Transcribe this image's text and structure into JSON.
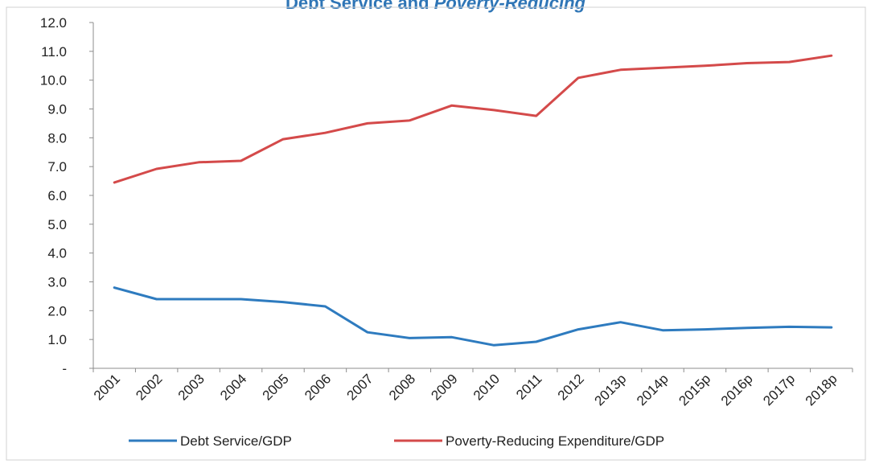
{
  "chart_data": {
    "type": "line",
    "title_part1": "Debt Service and",
    "title_part2": "Poverty-Reducing",
    "x": [
      "2001",
      "2002",
      "2003",
      "2004",
      "2005",
      "2006",
      "2007",
      "2008",
      "2009",
      "2010",
      "2011",
      "2012",
      "2013p",
      "2014p",
      "2015p",
      "2016p",
      "2017p",
      "2018p"
    ],
    "series": [
      {
        "name": "Debt Service/GDP",
        "color": "#2e7bbf",
        "values": [
          2.8,
          2.4,
          2.4,
          2.4,
          2.3,
          2.15,
          1.25,
          1.05,
          1.08,
          0.8,
          0.92,
          1.35,
          1.6,
          1.32,
          1.35,
          1.4,
          1.44,
          1.42
        ]
      },
      {
        "name": "Poverty-Reducing Expenditure/GDP",
        "color": "#d44a4a",
        "values": [
          6.45,
          6.92,
          7.15,
          7.2,
          7.95,
          8.17,
          8.5,
          8.6,
          9.12,
          8.96,
          8.76,
          10.08,
          10.36,
          10.43,
          10.5,
          10.59,
          10.63,
          10.85
        ]
      }
    ],
    "ylim": [
      0,
      12
    ],
    "yticks": [
      {
        "value": 0,
        "label": "-"
      },
      {
        "value": 1,
        "label": "1.0"
      },
      {
        "value": 2,
        "label": "2.0"
      },
      {
        "value": 3,
        "label": "3.0"
      },
      {
        "value": 4,
        "label": "4.0"
      },
      {
        "value": 5,
        "label": "5.0"
      },
      {
        "value": 6,
        "label": "6.0"
      },
      {
        "value": 7,
        "label": "7.0"
      },
      {
        "value": 8,
        "label": "8.0"
      },
      {
        "value": 9,
        "label": "9.0"
      },
      {
        "value": 10,
        "label": "10.0"
      },
      {
        "value": 11,
        "label": "11.0"
      },
      {
        "value": 12,
        "label": "12.0"
      }
    ],
    "grid": false,
    "legend": "bottom"
  }
}
